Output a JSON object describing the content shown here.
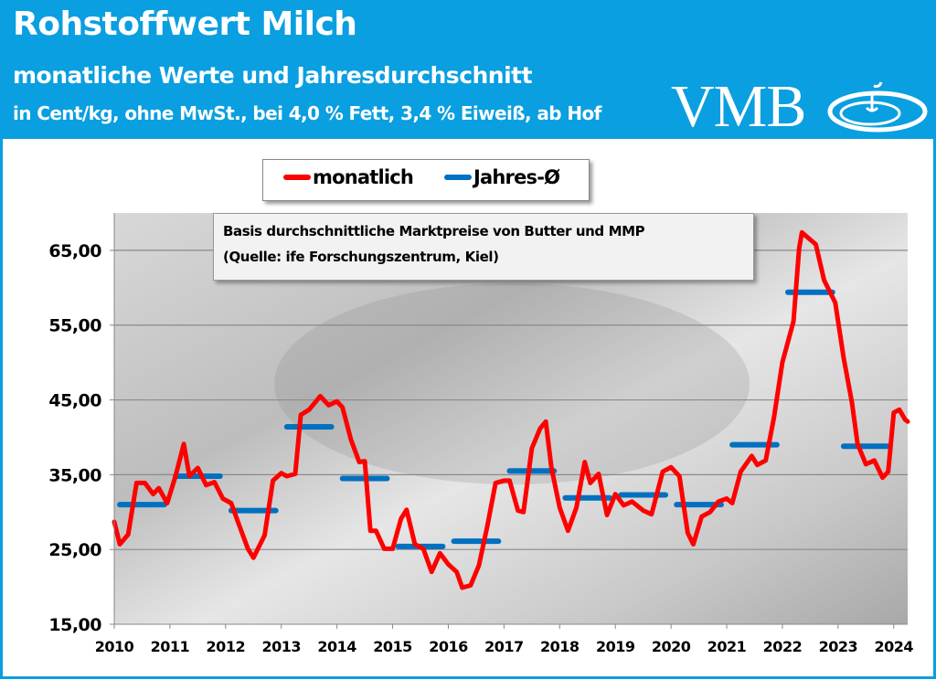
{
  "header": {
    "title": "Rohstoffwert Milch",
    "subtitle": "monatliche Werte und Jahresdurchschnitt",
    "unit_line": "in Cent/kg, ohne MwSt., bei 4,0 % Fett, 3,4 % Eiweiß, ab Hof",
    "logo_text": "VMB",
    "color": "#0a9fe0"
  },
  "chart_data": {
    "type": "line",
    "title": "",
    "xlabel": "",
    "ylabel": "",
    "xlim": [
      2010,
      2024.25
    ],
    "ylim": [
      15,
      70
    ],
    "grid": true,
    "legend_position": "top",
    "x_ticks": [
      "2010",
      "2011",
      "2012",
      "2013",
      "2014",
      "2015",
      "2016",
      "2017",
      "2018",
      "2019",
      "2020",
      "2021",
      "2022",
      "2023",
      "2024"
    ],
    "y_ticks": [
      "15,00",
      "25,00",
      "35,00",
      "45,00",
      "55,00",
      "65,00"
    ],
    "y_tick_values": [
      15,
      25,
      35,
      45,
      55,
      65
    ],
    "annotation": [
      "Basis durchschnittliche Marktpreise von Butter und MMP",
      "(Quelle: ife Forschungszentrum, Kiel)"
    ],
    "series": [
      {
        "name": "monatlich",
        "color": "#ff0000",
        "points": [
          [
            2010.0,
            28.7
          ],
          [
            2010.1,
            25.7
          ],
          [
            2010.25,
            27.0
          ],
          [
            2010.4,
            33.9
          ],
          [
            2010.55,
            33.9
          ],
          [
            2010.7,
            32.4
          ],
          [
            2010.8,
            33.2
          ],
          [
            2010.95,
            31.2
          ],
          [
            2011.1,
            34.8
          ],
          [
            2011.25,
            39.1
          ],
          [
            2011.35,
            34.8
          ],
          [
            2011.5,
            35.9
          ],
          [
            2011.65,
            33.6
          ],
          [
            2011.8,
            34.0
          ],
          [
            2011.95,
            31.8
          ],
          [
            2012.1,
            31.2
          ],
          [
            2012.25,
            28.1
          ],
          [
            2012.4,
            25.1
          ],
          [
            2012.5,
            23.9
          ],
          [
            2012.7,
            26.9
          ],
          [
            2012.85,
            34.2
          ],
          [
            2013.0,
            35.2
          ],
          [
            2013.1,
            34.8
          ],
          [
            2013.25,
            35.1
          ],
          [
            2013.35,
            43.0
          ],
          [
            2013.5,
            43.7
          ],
          [
            2013.7,
            45.5
          ],
          [
            2013.85,
            44.3
          ],
          [
            2014.0,
            44.8
          ],
          [
            2014.1,
            44.0
          ],
          [
            2014.25,
            39.7
          ],
          [
            2014.4,
            36.7
          ],
          [
            2014.5,
            36.8
          ],
          [
            2014.6,
            27.5
          ],
          [
            2014.7,
            27.5
          ],
          [
            2014.85,
            25.1
          ],
          [
            2015.0,
            25.1
          ],
          [
            2015.15,
            29.1
          ],
          [
            2015.25,
            30.3
          ],
          [
            2015.4,
            25.7
          ],
          [
            2015.55,
            25.1
          ],
          [
            2015.7,
            22.0
          ],
          [
            2015.85,
            24.5
          ],
          [
            2016.0,
            23.0
          ],
          [
            2016.15,
            22.0
          ],
          [
            2016.25,
            19.9
          ],
          [
            2016.4,
            20.2
          ],
          [
            2016.55,
            22.9
          ],
          [
            2016.7,
            28.1
          ],
          [
            2016.85,
            33.9
          ],
          [
            2017.0,
            34.2
          ],
          [
            2017.1,
            34.2
          ],
          [
            2017.25,
            30.2
          ],
          [
            2017.35,
            30.0
          ],
          [
            2017.5,
            38.5
          ],
          [
            2017.65,
            41.2
          ],
          [
            2017.75,
            42.1
          ],
          [
            2017.85,
            36.0
          ],
          [
            2018.0,
            30.6
          ],
          [
            2018.15,
            27.5
          ],
          [
            2018.3,
            30.6
          ],
          [
            2018.45,
            36.7
          ],
          [
            2018.55,
            33.9
          ],
          [
            2018.7,
            35.1
          ],
          [
            2018.85,
            29.6
          ],
          [
            2019.0,
            32.4
          ],
          [
            2019.15,
            30.9
          ],
          [
            2019.3,
            31.4
          ],
          [
            2019.5,
            30.2
          ],
          [
            2019.65,
            29.7
          ],
          [
            2019.85,
            35.4
          ],
          [
            2020.0,
            36.0
          ],
          [
            2020.15,
            34.8
          ],
          [
            2020.3,
            27.2
          ],
          [
            2020.4,
            25.7
          ],
          [
            2020.55,
            29.4
          ],
          [
            2020.7,
            30.0
          ],
          [
            2020.85,
            31.4
          ],
          [
            2021.0,
            31.8
          ],
          [
            2021.1,
            31.2
          ],
          [
            2021.25,
            35.4
          ],
          [
            2021.45,
            37.5
          ],
          [
            2021.55,
            36.3
          ],
          [
            2021.7,
            36.9
          ],
          [
            2021.85,
            42.7
          ],
          [
            2022.0,
            50.0
          ],
          [
            2022.2,
            55.5
          ],
          [
            2022.3,
            65.2
          ],
          [
            2022.35,
            67.4
          ],
          [
            2022.6,
            65.8
          ],
          [
            2022.75,
            61.0
          ],
          [
            2022.95,
            58.0
          ],
          [
            2023.1,
            50.6
          ],
          [
            2023.25,
            44.6
          ],
          [
            2023.35,
            39.1
          ],
          [
            2023.5,
            36.4
          ],
          [
            2023.65,
            36.9
          ],
          [
            2023.8,
            34.6
          ],
          [
            2023.9,
            35.4
          ],
          [
            2024.0,
            43.3
          ],
          [
            2024.1,
            43.7
          ],
          [
            2024.2,
            42.4
          ],
          [
            2024.25,
            42.1
          ]
        ]
      },
      {
        "name": "Jahres-Ø",
        "color": "#0070c0",
        "years": [
          2010,
          2011,
          2012,
          2013,
          2014,
          2015,
          2016,
          2017,
          2018,
          2019,
          2020,
          2021,
          2022,
          2023
        ],
        "values": [
          31.0,
          34.8,
          30.2,
          41.4,
          34.5,
          25.4,
          26.1,
          35.5,
          31.9,
          32.3,
          31.0,
          39.0,
          59.4,
          38.8
        ]
      }
    ]
  }
}
